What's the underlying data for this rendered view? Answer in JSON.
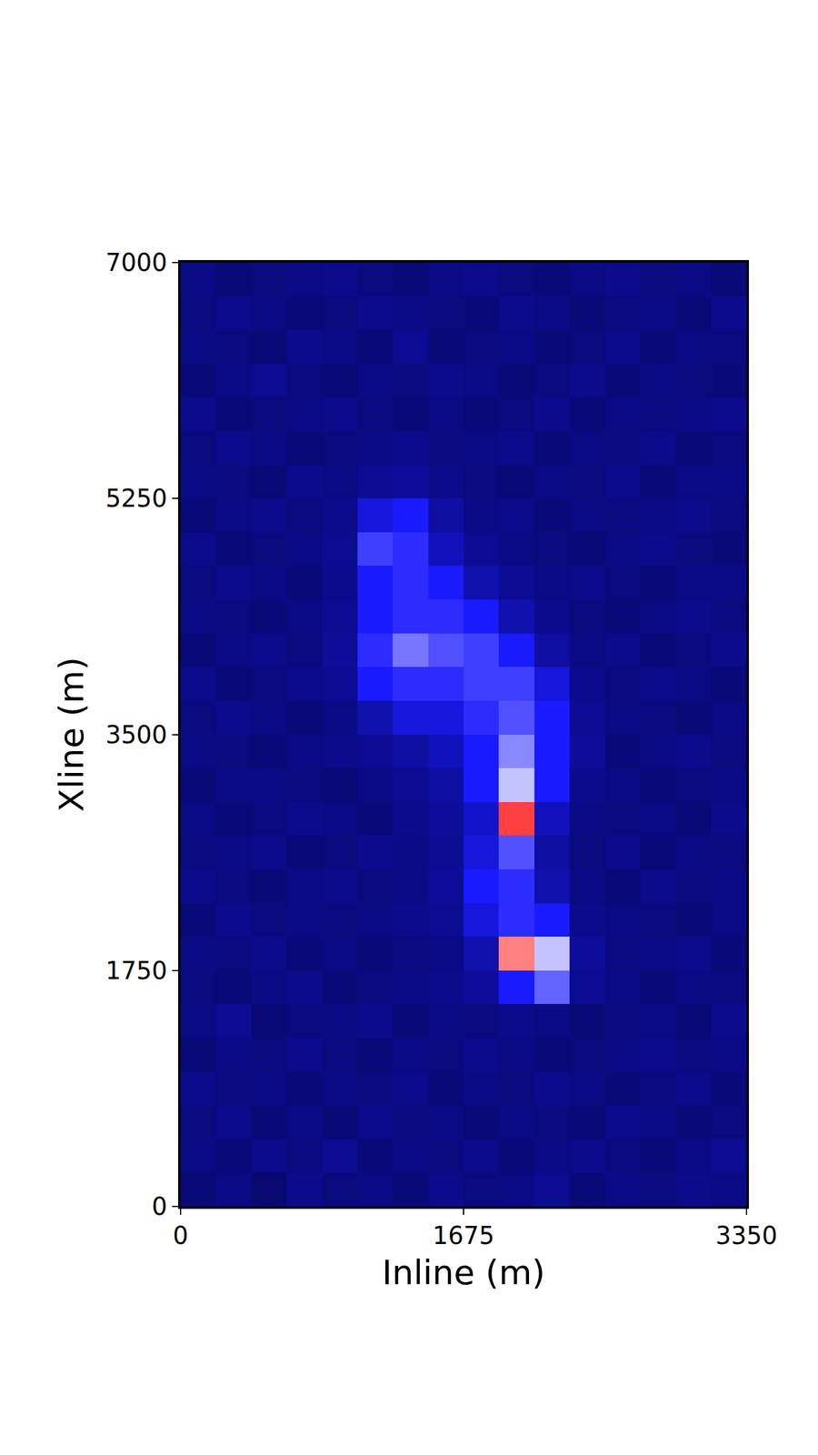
{
  "chart_data": {
    "type": "heatmap",
    "x_label": "Inline (m)",
    "y_label": "Xline (m)",
    "xlim": [
      0,
      3350
    ],
    "ylim": [
      0,
      7000
    ],
    "xticks": [
      0,
      1675,
      3350
    ],
    "yticks": [
      0,
      1750,
      3500,
      5250,
      7000
    ],
    "zlim": [
      0,
      1
    ],
    "x": [
      104.7,
      314.1,
      523.4,
      732.8,
      942.2,
      1151.6,
      1360.9,
      1570.3,
      1779.7,
      1989.1,
      2198.4,
      2407.8,
      2617.2,
      2826.6,
      3035.9,
      3245.3
    ],
    "y": [
      125,
      375,
      625,
      875,
      1125,
      1375,
      1625,
      1875,
      2125,
      2375,
      2625,
      2875,
      3125,
      3375,
      3625,
      3875,
      4125,
      4375,
      4625,
      4875,
      5125,
      5375,
      5625,
      5875,
      6125,
      6375,
      6625,
      6875
    ],
    "z": [
      [
        0.1,
        0.12,
        0.09,
        0.13,
        0.11,
        0.12,
        0.1,
        0.13,
        0.11,
        0.12,
        0.14,
        0.1,
        0.12,
        0.11,
        0.13,
        0.12
      ],
      [
        0.12,
        0.1,
        0.13,
        0.11,
        0.14,
        0.1,
        0.12,
        0.11,
        0.13,
        0.1,
        0.12,
        0.13,
        0.11,
        0.1,
        0.12,
        0.14
      ],
      [
        0.11,
        0.13,
        0.1,
        0.12,
        0.1,
        0.13,
        0.11,
        0.12,
        0.1,
        0.12,
        0.11,
        0.1,
        0.13,
        0.12,
        0.1,
        0.11
      ],
      [
        0.13,
        0.11,
        0.12,
        0.1,
        0.12,
        0.11,
        0.13,
        0.1,
        0.12,
        0.11,
        0.13,
        0.12,
        0.1,
        0.11,
        0.13,
        0.1
      ],
      [
        0.1,
        0.12,
        0.11,
        0.13,
        0.11,
        0.1,
        0.12,
        0.11,
        0.13,
        0.12,
        0.1,
        0.11,
        0.12,
        0.13,
        0.11,
        0.12
      ],
      [
        0.12,
        0.14,
        0.1,
        0.11,
        0.12,
        0.13,
        0.1,
        0.12,
        0.11,
        0.13,
        0.12,
        0.1,
        0.11,
        0.12,
        0.1,
        0.13
      ],
      [
        0.11,
        0.1,
        0.12,
        0.13,
        0.1,
        0.11,
        0.12,
        0.13,
        0.15,
        0.3,
        0.5,
        0.14,
        0.12,
        0.1,
        0.12,
        0.11
      ],
      [
        0.12,
        0.11,
        0.13,
        0.1,
        0.12,
        0.1,
        0.11,
        0.12,
        0.18,
        0.9,
        0.7,
        0.15,
        0.11,
        0.12,
        0.13,
        0.1
      ],
      [
        0.1,
        0.13,
        0.11,
        0.12,
        0.11,
        0.12,
        0.13,
        0.14,
        0.25,
        0.35,
        0.3,
        0.13,
        0.12,
        0.11,
        0.1,
        0.12
      ],
      [
        0.13,
        0.11,
        0.1,
        0.12,
        0.13,
        0.11,
        0.12,
        0.15,
        0.3,
        0.35,
        0.18,
        0.12,
        0.1,
        0.13,
        0.11,
        0.12
      ],
      [
        0.11,
        0.12,
        0.13,
        0.1,
        0.11,
        0.13,
        0.12,
        0.14,
        0.25,
        0.45,
        0.16,
        0.11,
        0.13,
        0.1,
        0.12,
        0.11
      ],
      [
        0.12,
        0.1,
        0.11,
        0.13,
        0.12,
        0.1,
        0.13,
        0.15,
        0.22,
        0.95,
        0.2,
        0.12,
        0.11,
        0.12,
        0.1,
        0.13
      ],
      [
        0.1,
        0.12,
        0.12,
        0.11,
        0.1,
        0.12,
        0.14,
        0.16,
        0.3,
        0.7,
        0.3,
        0.13,
        0.12,
        0.1,
        0.11,
        0.12
      ],
      [
        0.12,
        0.11,
        0.1,
        0.12,
        0.13,
        0.14,
        0.16,
        0.2,
        0.3,
        0.6,
        0.3,
        0.15,
        0.1,
        0.12,
        0.13,
        0.11
      ],
      [
        0.11,
        0.13,
        0.12,
        0.1,
        0.12,
        0.18,
        0.25,
        0.25,
        0.35,
        0.45,
        0.3,
        0.14,
        0.12,
        0.11,
        0.1,
        0.12
      ],
      [
        0.13,
        0.1,
        0.11,
        0.13,
        0.14,
        0.3,
        0.35,
        0.35,
        0.4,
        0.4,
        0.25,
        0.13,
        0.11,
        0.13,
        0.12,
        0.1
      ],
      [
        0.1,
        0.12,
        0.13,
        0.11,
        0.15,
        0.35,
        0.55,
        0.45,
        0.4,
        0.3,
        0.16,
        0.12,
        0.13,
        0.1,
        0.11,
        0.13
      ],
      [
        0.12,
        0.11,
        0.1,
        0.12,
        0.14,
        0.3,
        0.35,
        0.35,
        0.3,
        0.18,
        0.13,
        0.11,
        0.1,
        0.12,
        0.13,
        0.11
      ],
      [
        0.11,
        0.13,
        0.12,
        0.1,
        0.13,
        0.3,
        0.35,
        0.3,
        0.18,
        0.14,
        0.12,
        0.13,
        0.11,
        0.1,
        0.12,
        0.12
      ],
      [
        0.13,
        0.1,
        0.11,
        0.12,
        0.14,
        0.4,
        0.35,
        0.2,
        0.14,
        0.12,
        0.11,
        0.1,
        0.12,
        0.13,
        0.11,
        0.1
      ],
      [
        0.1,
        0.12,
        0.13,
        0.11,
        0.13,
        0.25,
        0.3,
        0.16,
        0.12,
        0.13,
        0.1,
        0.12,
        0.11,
        0.12,
        0.13,
        0.11
      ],
      [
        0.12,
        0.11,
        0.1,
        0.13,
        0.12,
        0.14,
        0.15,
        0.13,
        0.11,
        0.1,
        0.12,
        0.11,
        0.13,
        0.1,
        0.12,
        0.12
      ],
      [
        0.11,
        0.13,
        0.12,
        0.1,
        0.11,
        0.12,
        0.13,
        0.11,
        0.12,
        0.13,
        0.1,
        0.12,
        0.11,
        0.13,
        0.1,
        0.11
      ],
      [
        0.13,
        0.1,
        0.11,
        0.12,
        0.13,
        0.11,
        0.1,
        0.12,
        0.1,
        0.11,
        0.13,
        0.1,
        0.12,
        0.11,
        0.12,
        0.13
      ],
      [
        0.1,
        0.12,
        0.14,
        0.11,
        0.1,
        0.12,
        0.11,
        0.13,
        0.12,
        0.1,
        0.11,
        0.13,
        0.1,
        0.12,
        0.11,
        0.1
      ],
      [
        0.12,
        0.11,
        0.1,
        0.13,
        0.12,
        0.1,
        0.14,
        0.1,
        0.11,
        0.12,
        0.1,
        0.11,
        0.13,
        0.1,
        0.12,
        0.11
      ],
      [
        0.11,
        0.13,
        0.12,
        0.1,
        0.11,
        0.13,
        0.12,
        0.11,
        0.1,
        0.13,
        0.12,
        0.1,
        0.11,
        0.12,
        0.1,
        0.13
      ],
      [
        0.12,
        0.1,
        0.11,
        0.12,
        0.13,
        0.11,
        0.1,
        0.12,
        0.13,
        0.11,
        0.1,
        0.12,
        0.13,
        0.11,
        0.12,
        0.1
      ]
    ]
  }
}
